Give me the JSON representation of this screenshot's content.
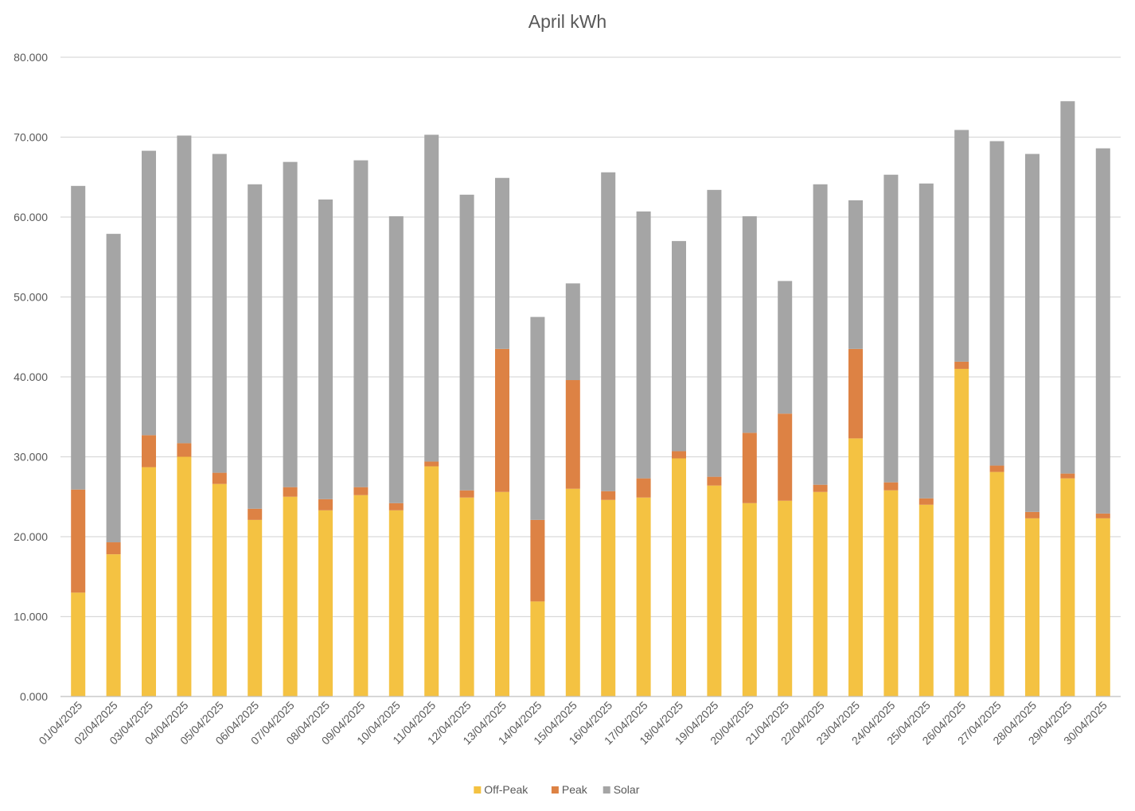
{
  "chart_data": {
    "type": "bar",
    "stacked": true,
    "title": "April kWh",
    "xlabel": "",
    "ylabel": "",
    "ylim": [
      0,
      80
    ],
    "y_ticks": [
      "0.000",
      "10.000",
      "20.000",
      "30.000",
      "40.000",
      "50.000",
      "60.000",
      "70.000",
      "80.000"
    ],
    "grid": true,
    "legend_position": "bottom",
    "categories": [
      "01/04/2025",
      "02/04/2025",
      "03/04/2025",
      "04/04/2025",
      "05/04/2025",
      "06/04/2025",
      "07/04/2025",
      "08/04/2025",
      "09/04/2025",
      "10/04/2025",
      "11/04/2025",
      "12/04/2025",
      "13/04/2025",
      "14/04/2025",
      "15/04/2025",
      "16/04/2025",
      "17/04/2025",
      "18/04/2025",
      "19/04/2025",
      "20/04/2025",
      "21/04/2025",
      "22/04/2025",
      "23/04/2025",
      "24/04/2025",
      "25/04/2025",
      "26/04/2025",
      "27/04/2025",
      "28/04/2025",
      "29/04/2025",
      "30/04/2025"
    ],
    "series": [
      {
        "name": "Off-Peak",
        "color": "#F4C242",
        "values": [
          13.0,
          17.8,
          28.7,
          30.0,
          26.6,
          22.1,
          25.0,
          23.3,
          25.2,
          23.3,
          28.8,
          24.9,
          25.6,
          11.9,
          26.0,
          24.6,
          24.9,
          29.8,
          26.4,
          24.2,
          24.5,
          25.6,
          32.3,
          25.8,
          24.0,
          41.0,
          28.1,
          22.3,
          27.3,
          22.3
        ]
      },
      {
        "name": "Peak",
        "color": "#DD8244",
        "values": [
          12.9,
          1.5,
          4.0,
          1.7,
          1.4,
          1.4,
          1.2,
          1.4,
          1.0,
          0.9,
          0.6,
          0.9,
          17.9,
          10.2,
          13.6,
          1.1,
          2.4,
          0.9,
          1.1,
          8.8,
          10.9,
          0.9,
          11.2,
          1.0,
          0.8,
          0.9,
          0.8,
          0.8,
          0.6,
          0.6
        ]
      },
      {
        "name": "Solar",
        "color": "#A5A5A5",
        "values": [
          38.0,
          38.6,
          35.6,
          38.5,
          39.9,
          40.6,
          40.7,
          37.5,
          40.9,
          35.9,
          40.9,
          37.0,
          21.4,
          25.4,
          12.1,
          39.9,
          33.4,
          26.3,
          35.9,
          27.1,
          16.6,
          37.6,
          18.6,
          38.5,
          39.4,
          29.0,
          40.6,
          44.8,
          46.6,
          45.7
        ]
      }
    ]
  }
}
